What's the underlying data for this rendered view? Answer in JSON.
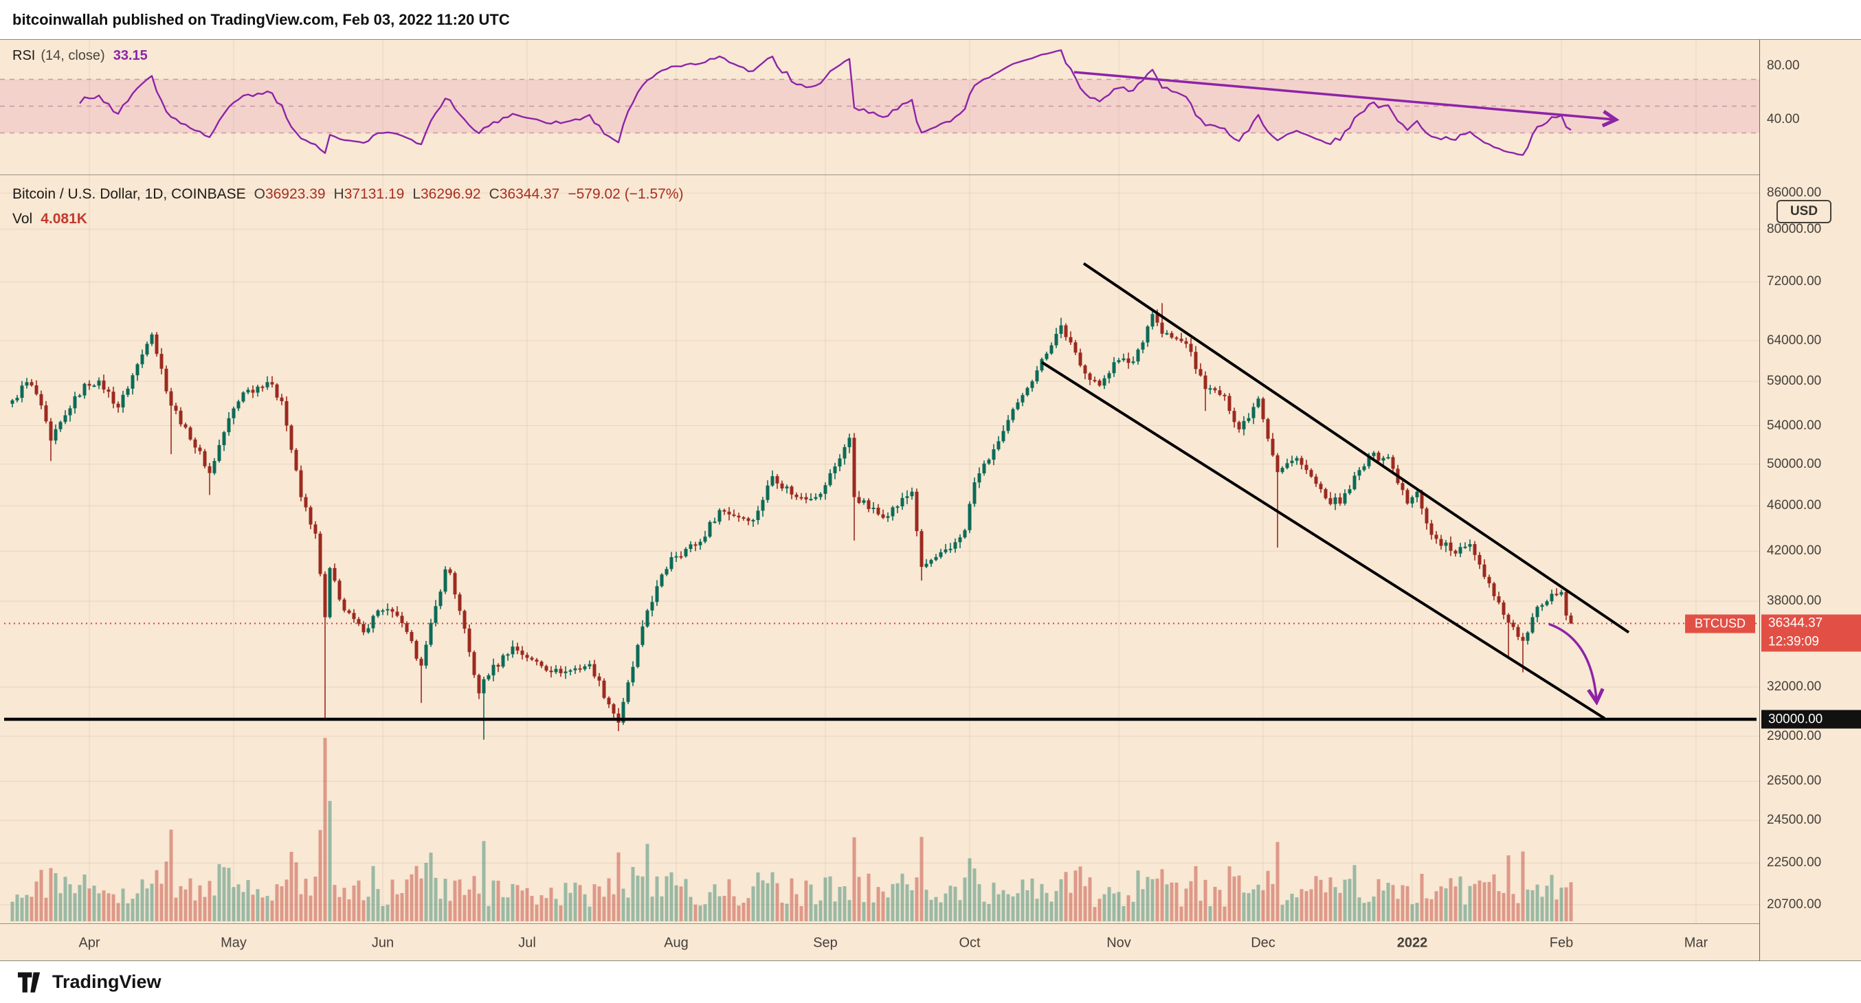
{
  "header": {
    "attribution": "bitcoinwallah published on TradingView.com, Feb 03, 2022 11:20 UTC"
  },
  "footer": {
    "brand": "TradingView"
  },
  "colors": {
    "chart_bg": "#f8e8d4",
    "grid": "rgba(122,89,54,0.13)",
    "candle_up": "#0c6b57",
    "candle_down": "#9c2a1f",
    "vol_up": "rgba(23,120,97,0.42)",
    "vol_down": "rgba(196,74,62,0.50)",
    "purple": "#8d24a8",
    "rsi_band_fill": "rgba(213,57,140,0.12)",
    "rsi_band_edge": "rgba(167,94,128,0.55)",
    "last_price_line": "#d8453a",
    "badge_red": "#e25045",
    "badge_black": "#111111",
    "legend_red": "#aa2d1f",
    "axis_text": "#45403a"
  },
  "rsi_panel": {
    "legend": {
      "title": "RSI",
      "params": "(14, close)",
      "value": "33.15"
    },
    "axis_labels": [
      {
        "v": 80,
        "label": "80.00"
      },
      {
        "v": 40,
        "label": "40.00"
      }
    ]
  },
  "main_panel": {
    "legend": {
      "title": "Bitcoin / U.S. Dollar, 1D, COINBASE",
      "ohlc": [
        {
          "k": "O",
          "v": "36923.39"
        },
        {
          "k": "H",
          "v": "37131.19"
        },
        {
          "k": "L",
          "v": "36296.92"
        },
        {
          "k": "C",
          "v": "36344.37"
        }
      ],
      "change": "−579.02 (−1.57%)",
      "vol_label": "Vol",
      "vol_value": "4.081K"
    }
  },
  "price_axis": {
    "currency_button": "USD",
    "labels": [
      {
        "p": 86000,
        "label": "86000.00"
      },
      {
        "p": 80000,
        "label": "80000.00"
      },
      {
        "p": 72000,
        "label": "72000.00"
      },
      {
        "p": 64000,
        "label": "64000.00"
      },
      {
        "p": 59000,
        "label": "59000.00"
      },
      {
        "p": 54000,
        "label": "54000.00"
      },
      {
        "p": 50000,
        "label": "50000.00"
      },
      {
        "p": 46000,
        "label": "46000.00"
      },
      {
        "p": 42000,
        "label": "42000.00"
      },
      {
        "p": 38000,
        "label": "38000.00"
      },
      {
        "p": 32000,
        "label": "32000.00"
      },
      {
        "p": 29000,
        "label": "29000.00"
      },
      {
        "p": 26500,
        "label": "26500.00"
      },
      {
        "p": 24500,
        "label": "24500.00"
      },
      {
        "p": 22500,
        "label": "22500.00"
      },
      {
        "p": 20700,
        "label": "20700.00"
      }
    ],
    "last_price_badge": {
      "symbol": "BTCUSD",
      "price": "36344.37",
      "countdown": "12:39:09"
    },
    "support_badge": "30000.00"
  },
  "time_axis": {
    "labels": [
      {
        "day": 16,
        "label": "Apr"
      },
      {
        "day": 46,
        "label": "May"
      },
      {
        "day": 77,
        "label": "Jun"
      },
      {
        "day": 107,
        "label": "Jul"
      },
      {
        "day": 138,
        "label": "Aug"
      },
      {
        "day": 169,
        "label": "Sep"
      },
      {
        "day": 199,
        "label": "Oct"
      },
      {
        "day": 230,
        "label": "Nov"
      },
      {
        "day": 260,
        "label": "Dec"
      },
      {
        "day": 291,
        "label": "2022",
        "bold": true
      },
      {
        "day": 322,
        "label": "Feb"
      },
      {
        "day": 350,
        "label": "Mar"
      }
    ]
  },
  "chart_data": {
    "type": "candlestick",
    "title": "Bitcoin / U.S. Dollar, 1D, COINBASE",
    "symbol": "BTCUSD",
    "interval": "1D",
    "exchange": "COINBASE",
    "price_scale": "log",
    "last_candle": {
      "o": 36923.39,
      "h": 37131.19,
      "l": 36296.92,
      "c": 36344.37,
      "change": -579.02,
      "change_pct": -1.57,
      "volume_k": 4.081
    },
    "rsi": {
      "period": 14,
      "source": "close",
      "current": 33.15,
      "band": [
        30,
        70
      ],
      "mid": 50,
      "axis_ticks": [
        80,
        40
      ]
    },
    "support_level": 30000,
    "last_price_level": 36344.37,
    "close_keyframes": [
      [
        0,
        56800
      ],
      [
        3,
        58900
      ],
      [
        5,
        57500
      ],
      [
        8,
        52400
      ],
      [
        12,
        55900
      ],
      [
        15,
        58700
      ],
      [
        18,
        59100
      ],
      [
        22,
        56000
      ],
      [
        28,
        63600
      ],
      [
        29,
        64800
      ],
      [
        33,
        56200
      ],
      [
        36,
        53800
      ],
      [
        41,
        49100
      ],
      [
        45,
        54800
      ],
      [
        48,
        57700
      ],
      [
        53,
        58900
      ],
      [
        56,
        56700
      ],
      [
        60,
        46800
      ],
      [
        63,
        43500
      ],
      [
        65,
        36800
      ],
      [
        66,
        40600
      ],
      [
        69,
        37300
      ],
      [
        73,
        35700
      ],
      [
        76,
        37300
      ],
      [
        80,
        36900
      ],
      [
        85,
        33400
      ],
      [
        90,
        40500
      ],
      [
        91,
        40200
      ],
      [
        97,
        31600
      ],
      [
        98,
        32500
      ],
      [
        104,
        34700
      ],
      [
        108,
        33800
      ],
      [
        114,
        32900
      ],
      [
        120,
        33500
      ],
      [
        126,
        29800
      ],
      [
        132,
        37300
      ],
      [
        137,
        41500
      ],
      [
        143,
        42800
      ],
      [
        147,
        45600
      ],
      [
        154,
        44700
      ],
      [
        158,
        48800
      ],
      [
        163,
        46800
      ],
      [
        168,
        47100
      ],
      [
        174,
        52700
      ],
      [
        175,
        46800
      ],
      [
        181,
        44900
      ],
      [
        187,
        47300
      ],
      [
        189,
        40700
      ],
      [
        195,
        42200
      ],
      [
        198,
        43800
      ],
      [
        200,
        48200
      ],
      [
        204,
        51500
      ],
      [
        210,
        57400
      ],
      [
        214,
        61700
      ],
      [
        218,
        66000
      ],
      [
        222,
        60900
      ],
      [
        226,
        58500
      ],
      [
        229,
        61300
      ],
      [
        233,
        61400
      ],
      [
        237,
        67500
      ],
      [
        239,
        64900
      ],
      [
        241,
        64400
      ],
      [
        244,
        63600
      ],
      [
        248,
        58100
      ],
      [
        252,
        57300
      ],
      [
        255,
        53600
      ],
      [
        259,
        57000
      ],
      [
        263,
        49200
      ],
      [
        267,
        50600
      ],
      [
        273,
        46700
      ],
      [
        276,
        46200
      ],
      [
        282,
        50800
      ],
      [
        286,
        50700
      ],
      [
        290,
        46200
      ],
      [
        292,
        47300
      ],
      [
        295,
        43400
      ],
      [
        300,
        41800
      ],
      [
        303,
        42600
      ],
      [
        311,
        36400
      ],
      [
        314,
        35100
      ],
      [
        316,
        36800
      ],
      [
        318,
        37700
      ],
      [
        321,
        38500
      ],
      [
        322,
        38700
      ],
      [
        323,
        36923.39
      ],
      [
        324,
        36344.37
      ]
    ],
    "wick_lows": [
      [
        8,
        50300
      ],
      [
        33,
        51000
      ],
      [
        41,
        47000
      ],
      [
        65,
        30000
      ],
      [
        85,
        31000
      ],
      [
        98,
        28800
      ],
      [
        126,
        29296
      ],
      [
        175,
        42900
      ],
      [
        189,
        39600
      ],
      [
        248,
        55600
      ],
      [
        263,
        42300
      ],
      [
        311,
        34000
      ],
      [
        314,
        32950
      ]
    ],
    "wick_highs": [
      [
        29,
        64850
      ],
      [
        53,
        59600
      ],
      [
        174,
        52950
      ],
      [
        218,
        67000
      ],
      [
        239,
        69000
      ]
    ],
    "volume_overrides_k": [
      [
        33,
        9.6
      ],
      [
        65,
        19.2
      ],
      [
        66,
        12.6
      ],
      [
        98,
        8.4
      ],
      [
        126,
        7.2
      ],
      [
        132,
        8.1
      ],
      [
        175,
        8.8
      ],
      [
        263,
        8.3
      ],
      [
        311,
        6.9
      ],
      [
        314,
        7.3
      ],
      [
        324,
        4.081
      ]
    ],
    "annotations": {
      "channel": [
        {
          "from_day": 222.7,
          "from_price": 74700,
          "to_day": 336,
          "to_price": 35700
        },
        {
          "from_day": 214,
          "from_price": 61300,
          "to_day": 331,
          "to_price": 30050
        }
      ],
      "price_arrow": {
        "from_day": 319.4,
        "from_price": 36300,
        "to_day": 329.3,
        "to_price": 31150
      },
      "rsi_arrow": {
        "from_day": 220.7,
        "from_value": 75.4,
        "to_day": 333,
        "to_value": 40
      }
    }
  }
}
